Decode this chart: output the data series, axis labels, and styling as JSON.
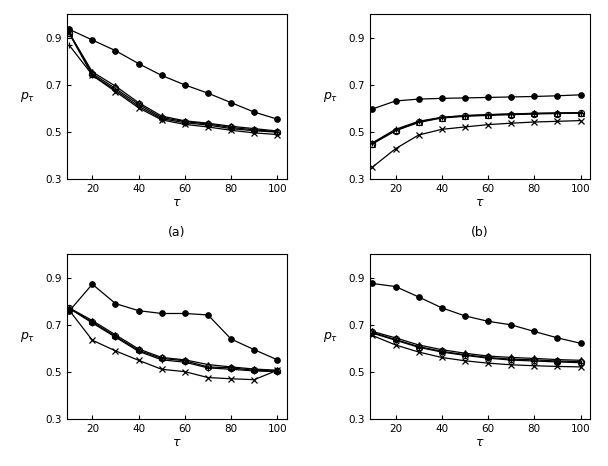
{
  "tau": [
    10,
    20,
    30,
    40,
    50,
    60,
    70,
    80,
    90,
    100
  ],
  "subplot_a": {
    "filled_circle": [
      0.935,
      0.89,
      0.845,
      0.79,
      0.74,
      0.7,
      0.665,
      0.625,
      0.585,
      0.555
    ],
    "triangle": [
      0.92,
      0.755,
      0.695,
      0.625,
      0.568,
      0.548,
      0.538,
      0.525,
      0.515,
      0.505
    ],
    "open_circle": [
      0.92,
      0.748,
      0.685,
      0.618,
      0.562,
      0.545,
      0.535,
      0.52,
      0.51,
      0.502
    ],
    "plus": [
      0.868,
      0.742,
      0.678,
      0.61,
      0.557,
      0.54,
      0.53,
      0.515,
      0.506,
      0.5
    ],
    "cross": [
      0.918,
      0.74,
      0.672,
      0.603,
      0.552,
      0.533,
      0.522,
      0.508,
      0.497,
      0.49
    ]
  },
  "subplot_b": {
    "filled_circle": [
      0.598,
      0.632,
      0.64,
      0.643,
      0.645,
      0.647,
      0.649,
      0.651,
      0.654,
      0.658
    ],
    "triangle": [
      0.452,
      0.508,
      0.543,
      0.562,
      0.57,
      0.574,
      0.577,
      0.58,
      0.581,
      0.582
    ],
    "open_circle": [
      0.45,
      0.506,
      0.541,
      0.56,
      0.567,
      0.571,
      0.574,
      0.577,
      0.579,
      0.581
    ],
    "plus": [
      0.455,
      0.512,
      0.546,
      0.563,
      0.57,
      0.574,
      0.577,
      0.579,
      0.581,
      0.582
    ],
    "cross": [
      0.352,
      0.43,
      0.488,
      0.512,
      0.522,
      0.532,
      0.538,
      0.543,
      0.546,
      0.549
    ]
  },
  "subplot_c": {
    "filled_circle": [
      0.758,
      0.872,
      0.79,
      0.76,
      0.748,
      0.748,
      0.742,
      0.64,
      0.595,
      0.552
    ],
    "triangle": [
      0.772,
      0.718,
      0.658,
      0.598,
      0.562,
      0.552,
      0.532,
      0.522,
      0.513,
      0.508
    ],
    "open_circle": [
      0.77,
      0.712,
      0.652,
      0.592,
      0.558,
      0.548,
      0.522,
      0.518,
      0.508,
      0.505
    ],
    "plus": [
      0.77,
      0.708,
      0.648,
      0.588,
      0.552,
      0.542,
      0.518,
      0.512,
      0.505,
      0.502
    ],
    "cross": [
      0.762,
      0.635,
      0.59,
      0.55,
      0.512,
      0.502,
      0.477,
      0.472,
      0.468,
      0.508
    ]
  },
  "subplot_d": {
    "filled_circle": [
      0.875,
      0.862,
      0.818,
      0.772,
      0.738,
      0.715,
      0.7,
      0.672,
      0.645,
      0.622
    ],
    "triangle": [
      0.672,
      0.645,
      0.615,
      0.595,
      0.58,
      0.568,
      0.562,
      0.558,
      0.553,
      0.55
    ],
    "open_circle": [
      0.668,
      0.638,
      0.608,
      0.588,
      0.574,
      0.562,
      0.555,
      0.552,
      0.547,
      0.544
    ],
    "plus": [
      0.665,
      0.635,
      0.605,
      0.585,
      0.571,
      0.559,
      0.551,
      0.547,
      0.543,
      0.54
    ],
    "cross": [
      0.655,
      0.615,
      0.585,
      0.562,
      0.548,
      0.538,
      0.531,
      0.527,
      0.524,
      0.522
    ]
  },
  "ylim": [
    0.3,
    1.0
  ],
  "yticks": [
    0.3,
    0.5,
    0.7,
    0.9
  ],
  "xticks": [
    20,
    40,
    60,
    80,
    100
  ],
  "xlabel": "τ",
  "color": "black",
  "linewidth": 0.9
}
